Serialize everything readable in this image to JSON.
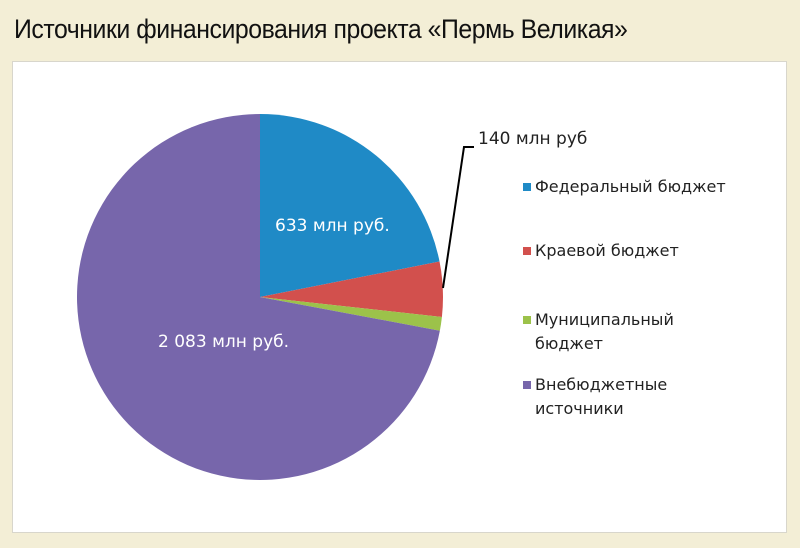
{
  "chart_data": {
    "type": "pie",
    "title": "Источники финансирования проекта «Пермь Великая»",
    "unit": "млн руб.",
    "slices": [
      {
        "name": "Федеральный бюджет",
        "value": 633,
        "color": "#1f8ac6",
        "label": "633 млн руб."
      },
      {
        "name": "Краевой бюджет",
        "value": 140,
        "color": "#d2504d",
        "label": "140 млн руб"
      },
      {
        "name": "Муниципальный бюджет",
        "value": 35,
        "color": "#9cc24a",
        "label": ""
      },
      {
        "name": "Внебюджетные источники",
        "value": 2083,
        "color": "#7766ab",
        "label": "2 083 млн руб."
      }
    ],
    "legend": {
      "position": "right",
      "items": [
        [
          "Федеральный бюджет"
        ],
        [
          "Краевой бюджет"
        ],
        [
          "Муниципальный",
          "бюджет"
        ],
        [
          "Внебюджетные",
          "источники"
        ]
      ]
    }
  }
}
